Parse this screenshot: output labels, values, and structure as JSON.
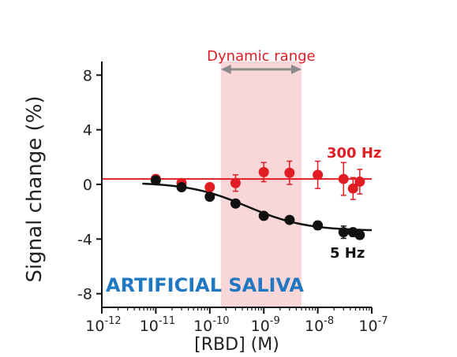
{
  "chart_data": {
    "type": "scatter",
    "xlabel": "[RBD] (M)",
    "ylabel": "Signal change (%)",
    "x_scale": "log",
    "xlim": [
      1e-12,
      1e-07
    ],
    "ylim": [
      -9,
      9
    ],
    "x_ticks": [
      {
        "base": "10",
        "exp": "-12",
        "value": 1e-12
      },
      {
        "base": "10",
        "exp": "-11",
        "value": 1e-11
      },
      {
        "base": "10",
        "exp": "-10",
        "value": 1e-10
      },
      {
        "base": "10",
        "exp": "-9",
        "value": 1e-09
      },
      {
        "base": "10",
        "exp": "-8",
        "value": 1e-08
      },
      {
        "base": "10",
        "exp": "-7",
        "value": 1e-07
      }
    ],
    "y_ticks": [
      {
        "label": "8",
        "value": 8
      },
      {
        "label": "4",
        "value": 4
      },
      {
        "label": "0",
        "value": 0
      },
      {
        "label": "-4",
        "value": -4
      },
      {
        "label": "-8",
        "value": -8
      }
    ],
    "dynamic_range": {
      "label": "Dynamic range",
      "x_start": 1.6e-10,
      "x_end": 5e-09,
      "color": "#f9d6d7"
    },
    "banner": {
      "text": "ARTIFICIAL SALIVA",
      "color": "#1f78c1"
    },
    "series": [
      {
        "name": "300 Hz",
        "color": "#e11d24",
        "fit": {
          "type": "constant",
          "y": 0.4
        },
        "points": [
          {
            "x": 1e-11,
            "y": 0.4,
            "err": 0.3
          },
          {
            "x": 3e-11,
            "y": 0.1,
            "err": 0.3
          },
          {
            "x": 1e-10,
            "y": -0.2,
            "err": 0.3
          },
          {
            "x": 3e-10,
            "y": 0.1,
            "err": 0.6
          },
          {
            "x": 1e-09,
            "y": 0.9,
            "err": 0.7
          },
          {
            "x": 3e-09,
            "y": 0.85,
            "err": 0.85
          },
          {
            "x": 1e-08,
            "y": 0.7,
            "err": 1.0
          },
          {
            "x": 3e-08,
            "y": 0.4,
            "err": 1.2
          },
          {
            "x": 4.5e-08,
            "y": -0.3,
            "err": 0.8
          },
          {
            "x": 6e-08,
            "y": 0.2,
            "err": 0.9
          }
        ]
      },
      {
        "name": "5 Hz",
        "color": "#111111",
        "fit": {
          "type": "sigmoid",
          "top": 0.15,
          "bottom": -3.4,
          "log_ec50": -9.3,
          "hill": 0.8
        },
        "points": [
          {
            "x": 1e-11,
            "y": 0.3,
            "err": 0.2
          },
          {
            "x": 3e-11,
            "y": -0.2,
            "err": 0.2
          },
          {
            "x": 1e-10,
            "y": -0.9,
            "err": 0.2
          },
          {
            "x": 3e-10,
            "y": -1.4,
            "err": 0.25
          },
          {
            "x": 1e-09,
            "y": -2.3,
            "err": 0.25
          },
          {
            "x": 3e-09,
            "y": -2.6,
            "err": 0.25
          },
          {
            "x": 1e-08,
            "y": -3.0,
            "err": 0.3
          },
          {
            "x": 3e-08,
            "y": -3.5,
            "err": 0.45
          },
          {
            "x": 4.5e-08,
            "y": -3.5,
            "err": 0.3
          },
          {
            "x": 6e-08,
            "y": -3.7,
            "err": 0.3
          }
        ]
      }
    ]
  }
}
